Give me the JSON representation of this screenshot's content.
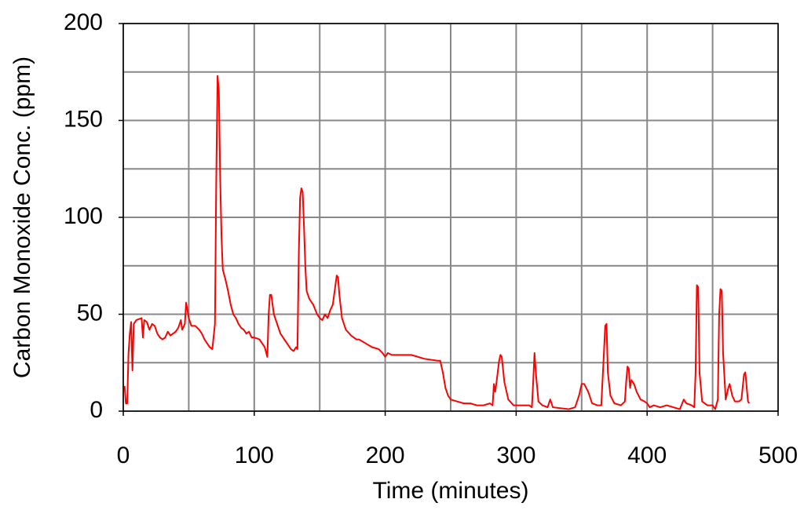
{
  "chart_data": {
    "type": "line",
    "xlabel": "Time (minutes)",
    "ylabel": "Carbon Monoxide Conc. (ppm)",
    "xlim": [
      0,
      500
    ],
    "ylim": [
      0,
      200
    ],
    "xticks": [
      0,
      100,
      200,
      300,
      400,
      500
    ],
    "yticks": [
      0,
      50,
      100,
      150,
      200
    ],
    "xgrid": [
      0,
      50,
      100,
      150,
      200,
      250,
      300,
      350,
      400,
      450,
      500
    ],
    "ygrid": [
      0,
      25,
      50,
      75,
      100,
      125,
      150,
      175,
      200
    ],
    "grid": true,
    "x": [
      1,
      2,
      3,
      4,
      5,
      6,
      7,
      8,
      10,
      14,
      15,
      16,
      18,
      20,
      22,
      24,
      26,
      28,
      30,
      32,
      34,
      36,
      38,
      40,
      42,
      44,
      45,
      47,
      48,
      50,
      52,
      55,
      58,
      60,
      62,
      64,
      66,
      68,
      70,
      71,
      72,
      73,
      74,
      75,
      76,
      78,
      80,
      82,
      84,
      86,
      88,
      90,
      92,
      94,
      96,
      98,
      100,
      104,
      108,
      110,
      111,
      112,
      113,
      115,
      118,
      120,
      124,
      128,
      130,
      132,
      133,
      134,
      135,
      136,
      137,
      138,
      139,
      140,
      142,
      145,
      148,
      150,
      152,
      154,
      156,
      158,
      160,
      162,
      163,
      164,
      165,
      167,
      170,
      174,
      178,
      180,
      185,
      190,
      195,
      198,
      200,
      202,
      205,
      210,
      220,
      230,
      240,
      242,
      244,
      246,
      248,
      250,
      255,
      260,
      265,
      270,
      275,
      280,
      282,
      283,
      284,
      285,
      287,
      288,
      289,
      291,
      294,
      298,
      310,
      312,
      313,
      314,
      315,
      317,
      320,
      324,
      326,
      328,
      340,
      345,
      348,
      350,
      352,
      355,
      358,
      362,
      365,
      367,
      368,
      369,
      370,
      372,
      375,
      380,
      383,
      384,
      385,
      386,
      387,
      388,
      390,
      392,
      395,
      398,
      400,
      402,
      405,
      410,
      415,
      420,
      425,
      428,
      430,
      434,
      436,
      437,
      438,
      439,
      440,
      442,
      446,
      450,
      452,
      454,
      455,
      456,
      457,
      458,
      460,
      462,
      463,
      465,
      467,
      470,
      472,
      474,
      475,
      477,
      478
    ],
    "series": [
      {
        "color": "#ff0000",
        "values": [
          13,
          4,
          4,
          30,
          40,
          46,
          21,
          45,
          47,
          48,
          38,
          47,
          46,
          42,
          45,
          44,
          40,
          38,
          37,
          38,
          41,
          39,
          40,
          41,
          43,
          47,
          42,
          45,
          56,
          48,
          44,
          44,
          42,
          40,
          37,
          35,
          33,
          32,
          45,
          120,
          173,
          165,
          120,
          90,
          73,
          68,
          62,
          55,
          50,
          48,
          45,
          43,
          42,
          40,
          41,
          38,
          38,
          37,
          33,
          28,
          50,
          60,
          60,
          50,
          44,
          40,
          36,
          32,
          31,
          33,
          32,
          80,
          110,
          115,
          113,
          95,
          75,
          62,
          58,
          55,
          50,
          48,
          47,
          50,
          48,
          52,
          55,
          65,
          70,
          69,
          60,
          48,
          42,
          39,
          37,
          37,
          35,
          33,
          32,
          30,
          28,
          30,
          29,
          29,
          29,
          27,
          26,
          26,
          20,
          12,
          8,
          6,
          5,
          4,
          4,
          3,
          3,
          4,
          3,
          14,
          10,
          15,
          26,
          29,
          28,
          15,
          6,
          3,
          3,
          2,
          15,
          30,
          20,
          5,
          3,
          2,
          6,
          2,
          1,
          2,
          8,
          14,
          14,
          10,
          4,
          3,
          3,
          30,
          44,
          45,
          20,
          8,
          4,
          3,
          5,
          15,
          23,
          22,
          12,
          16,
          14,
          10,
          6,
          5,
          4,
          2,
          3,
          2,
          3,
          2,
          1,
          6,
          4,
          3,
          2,
          20,
          65,
          64,
          20,
          5,
          3,
          3,
          1,
          6,
          50,
          63,
          62,
          30,
          6,
          12,
          14,
          8,
          5,
          5,
          6,
          19,
          20,
          5,
          4
        ]
      }
    ]
  }
}
